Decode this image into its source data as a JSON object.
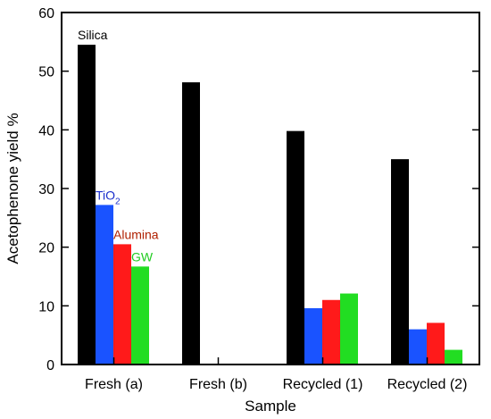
{
  "chart_data": {
    "type": "bar",
    "xlabel": "Sample",
    "ylabel": "Acetophenone yield %",
    "ylim": [
      0,
      60
    ],
    "yticks": [
      0,
      10,
      20,
      30,
      40,
      50,
      60
    ],
    "grid": false,
    "categories": [
      "Fresh (a)",
      "Fresh (b)",
      "Recycled (1)",
      "Recycled (2)"
    ],
    "series": [
      {
        "name": "Silica",
        "color": "#000000",
        "values": [
          54.5,
          48.1,
          39.8,
          35.0
        ]
      },
      {
        "name": "TiO2",
        "label_main": "TiO",
        "label_sub": "2",
        "color": "#1a53ff",
        "values": [
          27.2,
          null,
          9.6,
          6.0
        ]
      },
      {
        "name": "Alumina",
        "color": "#ff1a1a",
        "values": [
          20.5,
          null,
          11.0,
          7.1
        ]
      },
      {
        "name": "GW",
        "color": "#22dd22",
        "values": [
          16.7,
          null,
          12.1,
          2.5
        ]
      }
    ],
    "series_label_colors": {
      "Silica": "#000000",
      "TiO2": "#1a2ecc",
      "Alumina": "#b02000",
      "GW": "#22cc22"
    }
  }
}
